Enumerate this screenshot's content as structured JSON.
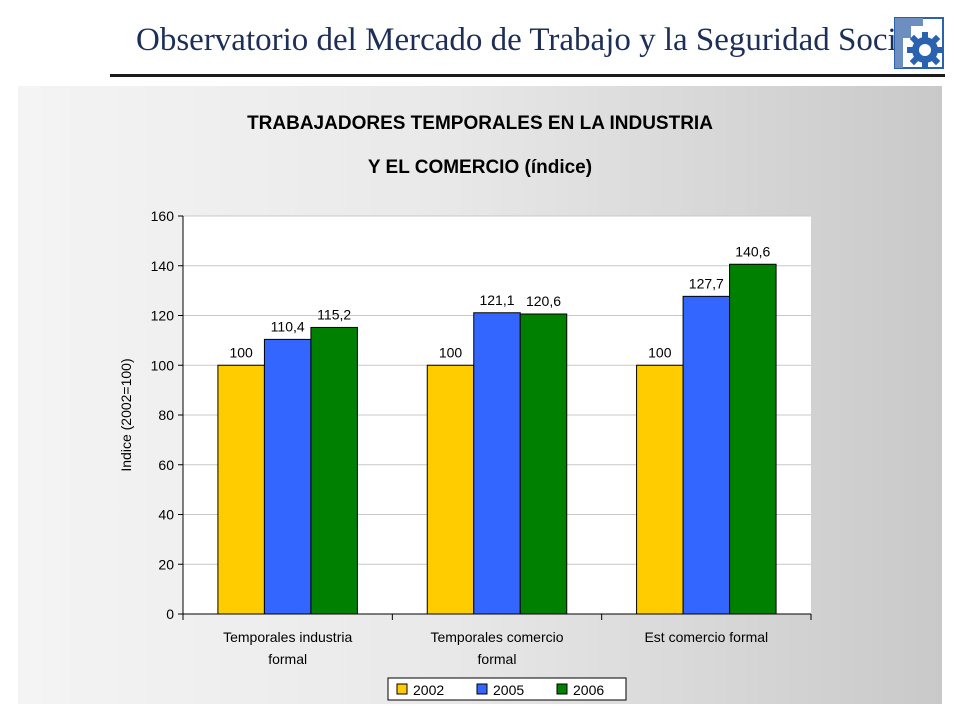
{
  "header": {
    "title": "Observatorio del Mercado de Trabajo y la Seguridad Social",
    "logo_icon": "gear-logo-icon",
    "accent_color": "#2a62b0"
  },
  "chart_data": {
    "type": "bar",
    "title_line1": "TRABAJADORES TEMPORALES EN LA INDUSTRIA",
    "title_line2": "Y EL COMERCIO (índice)",
    "ylabel": "Indice (2002=100)",
    "xlabel": "",
    "ylim": [
      0,
      160
    ],
    "yticks": [
      0,
      20,
      40,
      60,
      80,
      100,
      120,
      140,
      160
    ],
    "grid": true,
    "legend_position": "bottom",
    "categories": [
      [
        "Temporales industria",
        "formal"
      ],
      [
        "Temporales comercio",
        "formal"
      ],
      [
        "Est comercio formal"
      ]
    ],
    "series": [
      {
        "name": "2002",
        "color": "#ffcc00",
        "values": [
          100,
          100,
          100
        ],
        "labels": [
          "100",
          "100",
          "100"
        ]
      },
      {
        "name": "2005",
        "color": "#3366ff",
        "values": [
          110.4,
          121.1,
          127.7
        ],
        "labels": [
          "110,4",
          "121,1",
          "127,7"
        ]
      },
      {
        "name": "2006",
        "color": "#008000",
        "values": [
          115.2,
          120.6,
          140.6
        ],
        "labels": [
          "115,2",
          "120,6",
          "140,6"
        ]
      }
    ]
  }
}
